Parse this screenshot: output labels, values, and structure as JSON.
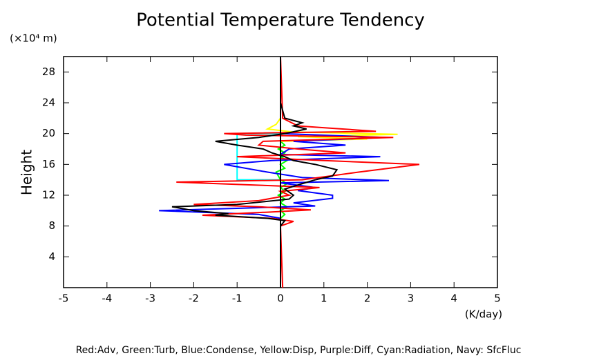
{
  "chart_data": {
    "type": "line",
    "title": "Potential Temperature Tendency",
    "y_unit": "(×10⁴ m)",
    "ylabel": "Height",
    "xlabel": "(K/day)",
    "footnote": "Red:Adv, Green:Turb, Blue:Condense, Yellow:Disp, Purple:Diff, Cyan:Radiation, Navy: SfcFluc",
    "xlim": [
      -5,
      5
    ],
    "ylim": [
      0,
      30
    ],
    "xticks": [
      -5,
      -4,
      -3,
      -2,
      -1,
      0,
      1,
      2,
      3,
      4,
      5
    ],
    "yticks": [
      4,
      8,
      12,
      16,
      20,
      24,
      28
    ],
    "series": [
      {
        "color": "#00ffff",
        "heights": [
          0,
          14,
          14,
          20,
          20,
          30
        ],
        "values": [
          0,
          0,
          -1.0,
          -1.0,
          0,
          0
        ]
      },
      {
        "color": "#00ff00",
        "heights": [
          0,
          9,
          9.5,
          10,
          10.5,
          11,
          11.5,
          12,
          12.5,
          13,
          13.5,
          14,
          15,
          15.5,
          16,
          16.5,
          17,
          17.5,
          18,
          18.5,
          19,
          20,
          30
        ],
        "values": [
          0,
          0,
          0.1,
          0,
          0.15,
          0,
          0.1,
          -0.05,
          0.1,
          0,
          0.15,
          0,
          -0.1,
          0.1,
          0,
          0.15,
          0,
          0.1,
          -0.05,
          0.1,
          0,
          0,
          0
        ]
      },
      {
        "color": "#ffff00",
        "heights": [
          0,
          19,
          19.3,
          19.6,
          19.9,
          20.2,
          20.6,
          21.2,
          22,
          30
        ],
        "values": [
          0,
          0,
          2.0,
          0.4,
          2.7,
          0.3,
          -0.3,
          -0.1,
          0,
          0
        ]
      },
      {
        "color": "#0000ff",
        "heights": [
          0,
          8,
          9,
          9.5,
          10,
          10.3,
          10.6,
          11,
          11.6,
          12,
          12.6,
          13,
          13.6,
          13.9,
          14.3,
          15,
          16,
          16.5,
          17,
          17.3,
          18,
          18.5,
          19,
          19.5,
          20,
          20.5,
          30
        ],
        "values": [
          0,
          0,
          0,
          -0.5,
          -2.8,
          -1.0,
          0.8,
          0.3,
          1.2,
          1.2,
          0.4,
          0.8,
          0,
          2.5,
          0.5,
          -0.3,
          -1.3,
          -0.2,
          2.3,
          0,
          0.2,
          1.5,
          0.3,
          2.4,
          0,
          0,
          0
        ]
      },
      {
        "color": "#ff0000",
        "heights": [
          0,
          8,
          8.6,
          9,
          9.4,
          9.8,
          10.1,
          10.5,
          10.8,
          11.3,
          12,
          12.5,
          13,
          13.3,
          13.7,
          14,
          15,
          16,
          16.5,
          17,
          17.3,
          17.5,
          18,
          18.5,
          19,
          19.5,
          19.8,
          20,
          20.3,
          20.8,
          21,
          22,
          30
        ],
        "values": [
          0.05,
          0,
          0.3,
          -0.2,
          -1.8,
          -0.3,
          0.7,
          -0.5,
          -2.0,
          -0.5,
          0.2,
          0,
          0.9,
          -0.5,
          -2.4,
          0.5,
          1.8,
          3.2,
          1.0,
          -1.0,
          0.5,
          1.5,
          0.4,
          -0.5,
          -0.4,
          2.6,
          -0.8,
          -1.3,
          2.2,
          0.9,
          0.4,
          0.05,
          0
        ]
      },
      {
        "color": "#000000",
        "heights": [
          0,
          8,
          8.7,
          9,
          9.4,
          9.6,
          10,
          10.5,
          10.8,
          11.5,
          12,
          12.8,
          13.5,
          14,
          14.5,
          15.3,
          16,
          16.5,
          17,
          17.5,
          18,
          18.5,
          19,
          19.5,
          20,
          20.6,
          21,
          21.4,
          22,
          24,
          30
        ],
        "values": [
          0,
          0,
          0.1,
          -0.3,
          -1.5,
          -1.2,
          -2.0,
          -2.5,
          -1.0,
          0.2,
          0.3,
          0.1,
          0.5,
          0.8,
          1.2,
          1.3,
          0.8,
          0.3,
          0.1,
          -0.2,
          -0.4,
          -1.0,
          -1.5,
          -0.5,
          0.1,
          0.6,
          0.3,
          0.5,
          0.1,
          0,
          0
        ]
      }
    ]
  }
}
